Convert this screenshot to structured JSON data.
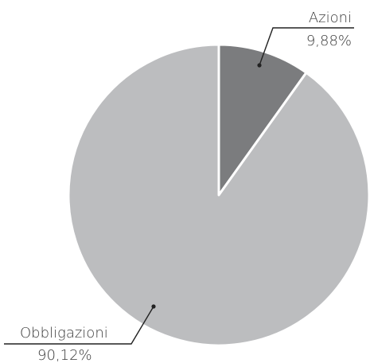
{
  "chart_data": {
    "type": "pie",
    "start_angle_deg": 0,
    "direction": "clockwise",
    "slices": [
      {
        "label": "Azioni",
        "value": 9.88,
        "value_text": "9,88%",
        "color": "#7b7c7e"
      },
      {
        "label": "Obbligazioni",
        "value": 90.12,
        "value_text": "90,12%",
        "color": "#bcbdbf"
      }
    ],
    "slice_border_color": "#ffffff",
    "leader_color": "#222222"
  }
}
